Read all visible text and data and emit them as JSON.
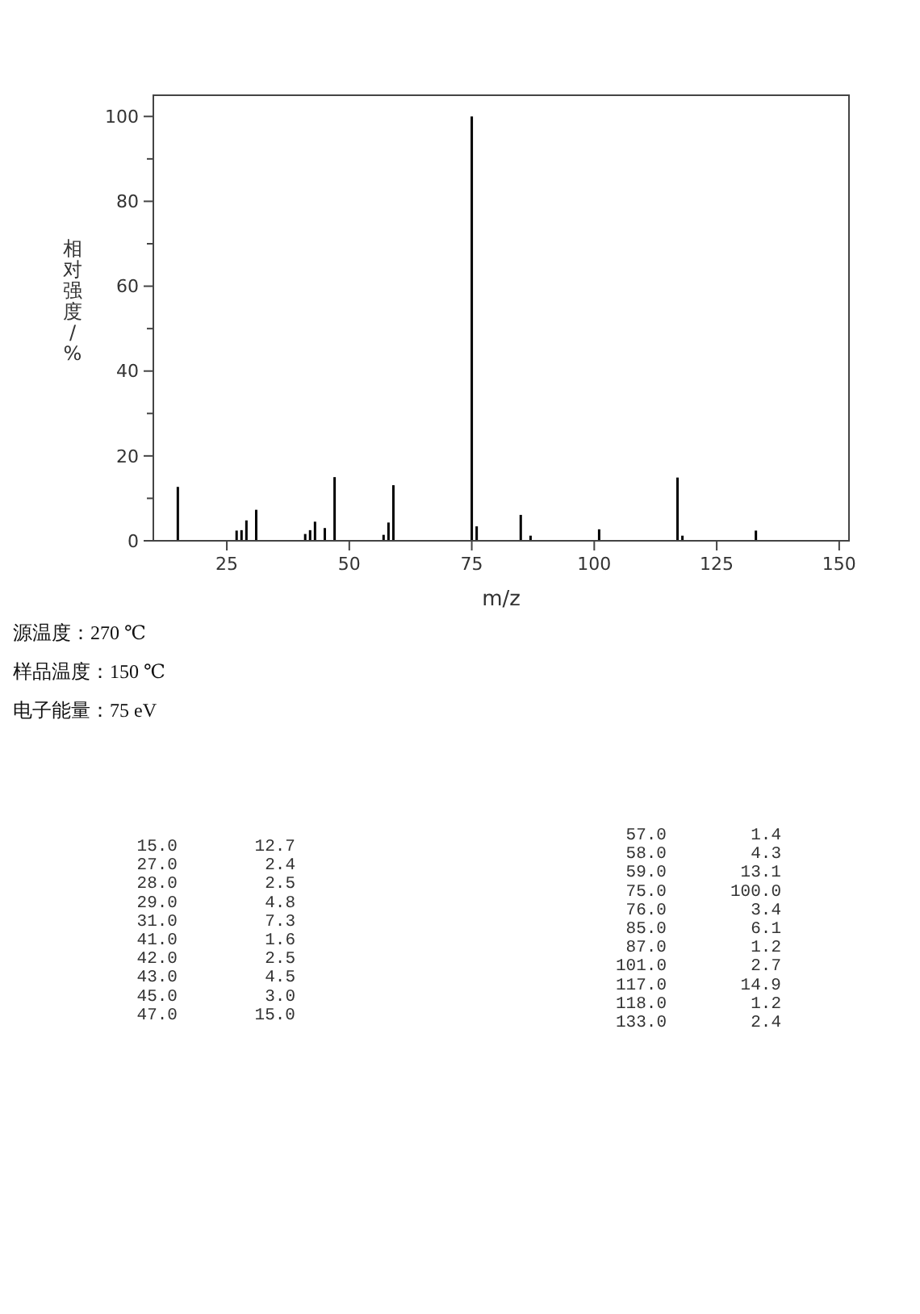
{
  "chart_data": [
    {
      "type": "bar",
      "xlabel": "m/z",
      "ylabel": "相对强度/%",
      "x": [
        15,
        27,
        28,
        29,
        31,
        41,
        42,
        43,
        45,
        47,
        57,
        58,
        59,
        75,
        76,
        85,
        87,
        101,
        117,
        118,
        133
      ],
      "series": [
        {
          "color": "#000000",
          "values": [
            12.7,
            2.4,
            2.5,
            4.8,
            7.3,
            1.6,
            2.5,
            4.5,
            3.0,
            15.0,
            1.4,
            4.3,
            13.1,
            100.0,
            3.4,
            6.1,
            1.2,
            2.7,
            14.9,
            1.2,
            2.4
          ]
        }
      ],
      "xlim": [
        10,
        152
      ],
      "xticks": [
        25,
        50,
        75,
        100,
        125,
        150
      ],
      "ylim": [
        0,
        105
      ],
      "yticks": [
        0,
        {
          "value": 10,
          "label": null
        },
        20,
        {
          "value": 30,
          "label": null
        },
        40,
        {
          "value": 50,
          "label": null
        },
        60,
        {
          "value": 70,
          "label": null
        },
        80,
        {
          "value": 90,
          "label": null
        },
        100
      ],
      "annotations": [
        "源温度：270 ℃",
        "样品温度：150 ℃",
        "电子能量：75 eV"
      ]
    },
    {
      "type": "other",
      "categories": [
        "15.0",
        "27.0",
        "28.0",
        "29.0",
        "31.0",
        "41.0",
        "42.0",
        "43.0",
        "45.0",
        "47.0",
        "57.0",
        "58.0",
        "59.0",
        "75.0",
        "76.0",
        "85.0",
        "87.0",
        "101.0",
        "117.0",
        "118.0",
        "133.0"
      ],
      "value_labels": [
        "12.7",
        "2.4",
        "2.5",
        "4.8",
        "7.3",
        "1.6",
        "2.5",
        "4.5",
        "3.0",
        "15.0",
        "1.4",
        "4.3",
        "13.1",
        "100.0",
        "3.4",
        "6.1",
        "1.2",
        "2.7",
        "14.9",
        "1.2",
        "2.4"
      ]
    }
  ]
}
